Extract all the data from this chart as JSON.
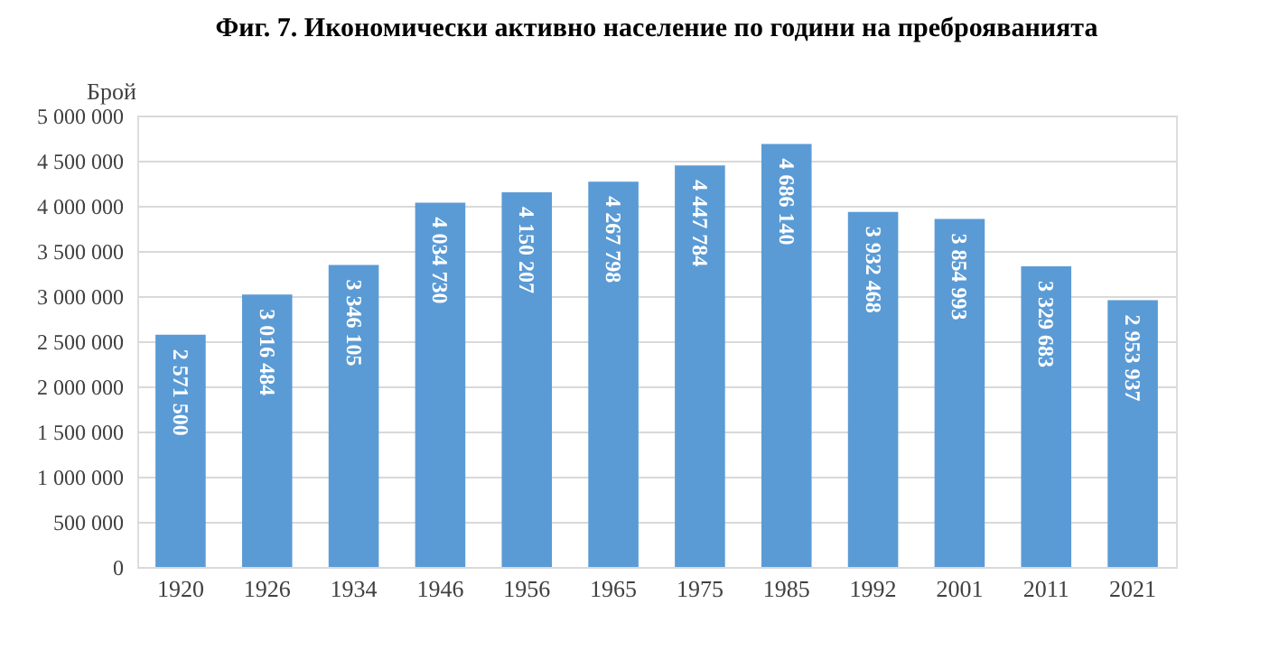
{
  "chart_data": {
    "type": "bar",
    "title": "Фиг. 7. Икономически активно население по години на преброяванията",
    "ylabel": "Брой",
    "categories": [
      "1920",
      "1926",
      "1934",
      "1946",
      "1956",
      "1965",
      "1975",
      "1985",
      "1992",
      "2001",
      "2011",
      "2021"
    ],
    "values": [
      2571500,
      3016484,
      3346105,
      4034730,
      4150207,
      4267798,
      4447784,
      4686140,
      3932468,
      3854993,
      3329683,
      2953937
    ],
    "value_labels": [
      "2 571 500",
      "3 016 484",
      "3 346 105",
      "4 034 730",
      "4 150 207",
      "4 267 798",
      "4 447 784",
      "4 686 140",
      "3 932 468",
      "3 854 993",
      "3 329 683",
      "2 953 937"
    ],
    "color": "#5b9bd5",
    "ylim": [
      0,
      5000000
    ],
    "yticks": [
      {
        "value": 0,
        "label": "0"
      },
      {
        "value": 500000,
        "label": "500 000"
      },
      {
        "value": 1000000,
        "label": "1 000 000"
      },
      {
        "value": 1500000,
        "label": "1 500 000"
      },
      {
        "value": 2000000,
        "label": "2 000 000"
      },
      {
        "value": 2500000,
        "label": "2 500 000"
      },
      {
        "value": 3000000,
        "label": "3 000 000"
      },
      {
        "value": 3500000,
        "label": "3 500 000"
      },
      {
        "value": 4000000,
        "label": "4 000 000"
      },
      {
        "value": 4500000,
        "label": "4 500 000"
      },
      {
        "value": 5000000,
        "label": "5 000 000"
      }
    ],
    "grid": "y"
  }
}
